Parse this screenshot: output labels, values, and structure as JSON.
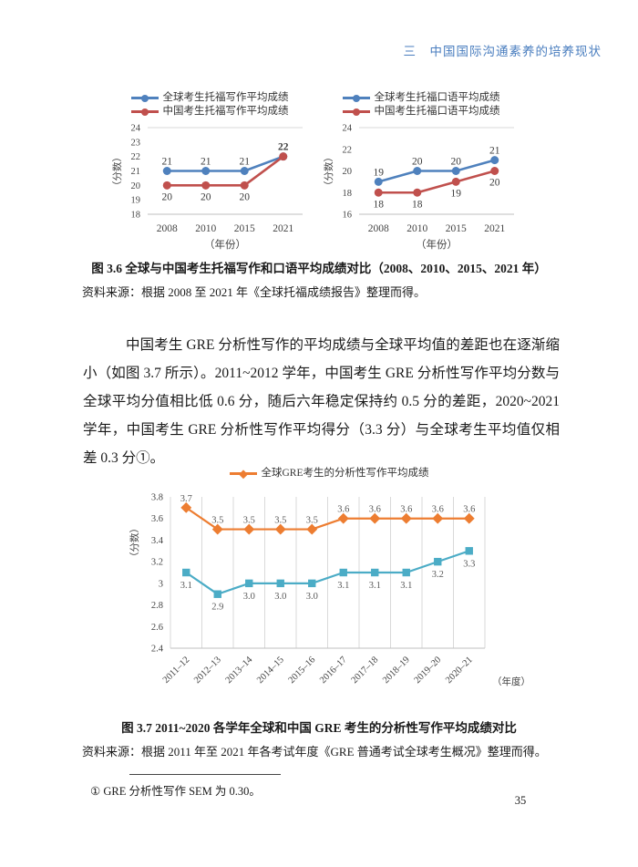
{
  "header": {
    "title": "三　中国国际沟通素养的培养现状",
    "color": "#4A7EBF"
  },
  "figure36": {
    "caption": "图 3.6 全球与中国考生托福写作和口语平均成绩对比（2008、2010、2015、2021 年）",
    "source": "资料来源：根据 2008 至 2021 年《全球托福成绩报告》整理而得。"
  },
  "paragraph": "中国考生 GRE 分析性写作的平均成绩与全球平均值的差距也在逐渐缩小（如图 3.7 所示）。2011~2012 学年，中国考生 GRE 分析性写作平均分数与全球平均分值相比低 0.6 分，随后六年稳定保持约 0.5 分的差距，2020~2021 学年，中国考生 GRE 分析性写作平均得分（3.3 分）与全球考生平均值仅相差 0.3 分①。",
  "figure37": {
    "caption": "图 3.7 2011~2020 各学年全球和中国 GRE 考生的分析性写作平均成绩对比",
    "source": "资料来源：根据 2011 年至 2021 年各考试年度《GRE 普通考试全球考生概况》整理而得。"
  },
  "footnote": {
    "text": "① GRE 分析性写作 SEM 为 0.30。"
  },
  "page": {
    "number": "35"
  },
  "chart_data": [
    {
      "id": "toefl-writing",
      "type": "line",
      "title": "",
      "categories": [
        "2008",
        "2010",
        "2015",
        "2021"
      ],
      "xlabel": "（年份）",
      "ylabel": "（分数）",
      "ylim": [
        18,
        24
      ],
      "yticks": [
        "24",
        "23",
        "22",
        "21",
        "20",
        "19",
        "18"
      ],
      "grid": "none",
      "legend_position": "top",
      "series": [
        {
          "name": "全球考生托福写作平均成绩",
          "color": "#4F81BD",
          "marker": "circle",
          "values": [
            21,
            21,
            21,
            22
          ],
          "labels": [
            "21",
            "21",
            "21",
            "22"
          ],
          "label_pos": [
            "above",
            "above",
            "above",
            "above"
          ],
          "bold_labels": [
            3
          ]
        },
        {
          "name": "中国考生托福写作平均成绩",
          "color": "#C0504D",
          "marker": "circle",
          "values": [
            20,
            20,
            20,
            22
          ],
          "labels": [
            "20",
            "20",
            "20",
            "22"
          ],
          "label_pos": [
            "below",
            "below",
            "below",
            "skip"
          ]
        }
      ]
    },
    {
      "id": "toefl-speaking",
      "type": "line",
      "title": "",
      "categories": [
        "2008",
        "2010",
        "2015",
        "2021"
      ],
      "xlabel": "（年份）",
      "ylabel": "（分数）",
      "ylim": [
        16,
        24
      ],
      "yticks": [
        "24",
        "22",
        "20",
        "18",
        "16"
      ],
      "grid": "none",
      "legend_position": "top",
      "series": [
        {
          "name": "全球考生托福口语平均成绩",
          "color": "#4F81BD",
          "marker": "circle",
          "values": [
            19,
            20,
            20,
            21
          ],
          "labels": [
            "19",
            "20",
            "20",
            "21"
          ],
          "label_pos": [
            "above",
            "above",
            "above",
            "above"
          ]
        },
        {
          "name": "中国考生托福口语平均成绩",
          "color": "#C0504D",
          "marker": "circle",
          "values": [
            18,
            18,
            19,
            20
          ],
          "labels": [
            "18",
            "18",
            "19",
            "20"
          ],
          "label_pos": [
            "below",
            "below",
            "below",
            "below"
          ]
        }
      ]
    },
    {
      "id": "gre-analytical-writing",
      "type": "line",
      "title": "",
      "categories": [
        "2011–12",
        "2012–13",
        "2013–14",
        "2014–15",
        "2015–16",
        "2016–17",
        "2017–18",
        "2018–19",
        "2019–20",
        "2020–21"
      ],
      "xlabel": "（年度）",
      "ylabel": "（分数）",
      "ylim": [
        2.4,
        3.8
      ],
      "yticks": [
        "3.8",
        "3.6",
        "3.4",
        "3.2",
        "3",
        "2.8",
        "2.6",
        "2.4"
      ],
      "grid": "vertical",
      "legend_position": "top",
      "series": [
        {
          "name": "全球GRE考生的分析性写作平均成绩",
          "color": "#ED7D31",
          "marker": "diamond",
          "values": [
            3.7,
            3.5,
            3.5,
            3.5,
            3.5,
            3.6,
            3.6,
            3.6,
            3.6,
            3.6
          ],
          "labels": [
            "3.7",
            "3.5",
            "3.5",
            "3.5",
            "3.5",
            "3.6",
            "3.6",
            "3.6",
            "3.6",
            "3.6"
          ],
          "label_pos": [
            "above",
            "above",
            "above",
            "above",
            "above",
            "above",
            "above",
            "above",
            "above",
            "above"
          ]
        },
        {
          "name": "",
          "in_legend": false,
          "color": "#4BACC6",
          "marker": "square",
          "values": [
            3.1,
            2.9,
            3.0,
            3.0,
            3.0,
            3.1,
            3.1,
            3.1,
            3.2,
            3.3
          ],
          "labels": [
            "3.1",
            "2.9",
            "3.0",
            "3.0",
            "3.0",
            "3.1",
            "3.1",
            "3.1",
            "3.2",
            "3.3"
          ],
          "label_pos": [
            "below",
            "below",
            "below",
            "below",
            "below",
            "below",
            "below",
            "below",
            "below",
            "below"
          ]
        }
      ]
    }
  ]
}
